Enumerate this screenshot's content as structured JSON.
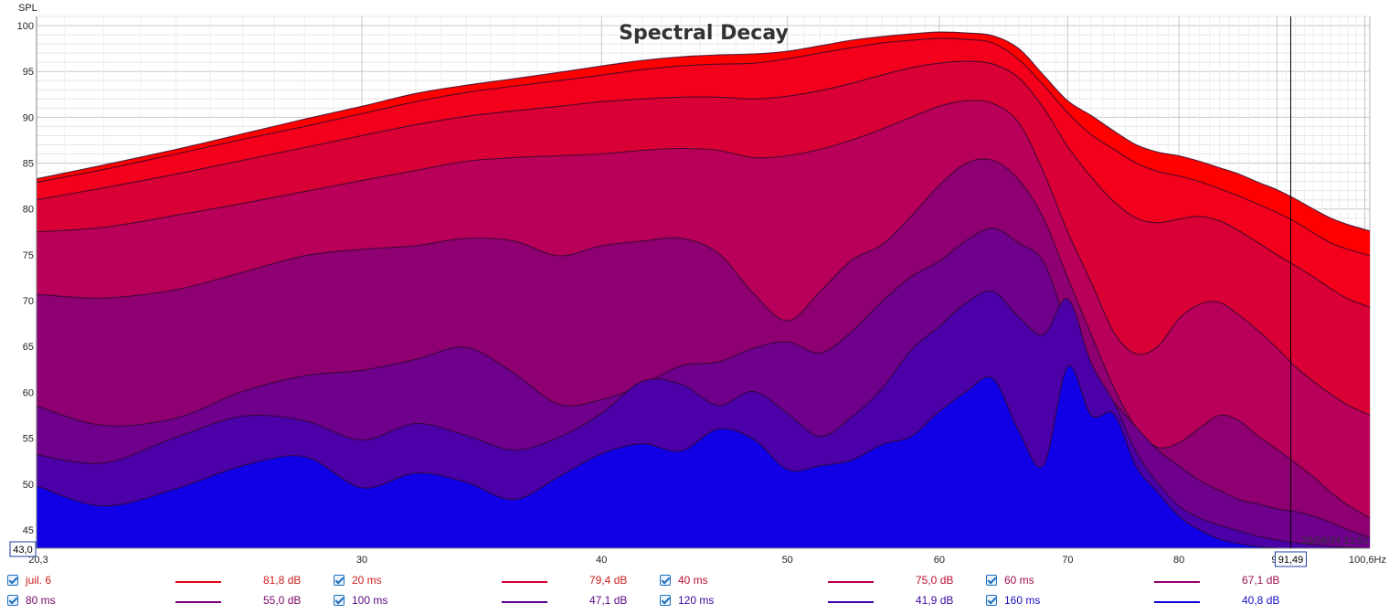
{
  "chart_data": {
    "type": "area",
    "title": "Spectral Decay",
    "ylabel": "SPL",
    "xunit": "Hz",
    "xscale": "log",
    "xlim": [
      20.3,
      100.6
    ],
    "ylim": [
      43.0,
      101.0
    ],
    "x_tick_labels": [
      "20,3",
      "30",
      "40",
      "50",
      "60",
      "70",
      "80",
      "90",
      "100,6Hz"
    ],
    "x_tick_values": [
      20.3,
      30,
      40,
      50,
      60,
      70,
      80,
      90,
      100.6
    ],
    "y_ticks": [
      45,
      50,
      55,
      60,
      65,
      70,
      75,
      80,
      85,
      90,
      95,
      100
    ],
    "y_min_label": "43,0",
    "cursor_label": "91,49",
    "cursor_x": 91.49,
    "timestamp": "25/08/24 21:51",
    "grid": true,
    "x": [
      20.3,
      22,
      24,
      26,
      28,
      30,
      32,
      34,
      36,
      38,
      40,
      42,
      44,
      46,
      48,
      50,
      52,
      54,
      56,
      58,
      60,
      62,
      64,
      66,
      68,
      70,
      72,
      74,
      76,
      78,
      80,
      82,
      84,
      86,
      88,
      90,
      92,
      94,
      96,
      98,
      100.6
    ],
    "series": [
      {
        "name": "juil. 6",
        "legend_value": "81,8 dB",
        "color": "#ff0000",
        "values": [
          83.3,
          84.8,
          86.5,
          88.2,
          89.8,
          91.2,
          92.6,
          93.5,
          94.2,
          94.9,
          95.6,
          96.2,
          96.6,
          96.8,
          96.9,
          97.2,
          97.8,
          98.4,
          98.8,
          99.1,
          99.3,
          99.2,
          98.9,
          97.5,
          94.6,
          91.8,
          90.2,
          88.5,
          87.0,
          86.2,
          85.8,
          85.2,
          84.5,
          83.8,
          82.9,
          82.1,
          81.1,
          80.0,
          79.0,
          78.3,
          77.6
        ]
      },
      {
        "name": "20 ms",
        "legend_value": "79,4 dB",
        "color": "#f2001c",
        "values": [
          82.9,
          84.3,
          86.0,
          87.6,
          89.0,
          90.4,
          91.7,
          92.7,
          93.4,
          94.0,
          94.6,
          95.2,
          95.6,
          95.8,
          95.9,
          96.4,
          97.0,
          97.6,
          98.1,
          98.4,
          98.6,
          98.5,
          98.1,
          96.3,
          93.5,
          90.5,
          88.1,
          86.5,
          85.0,
          84.1,
          83.6,
          83.0,
          82.2,
          81.4,
          80.5,
          79.6,
          78.6,
          77.4,
          76.3,
          75.6,
          74.9
        ]
      },
      {
        "name": "40 ms",
        "legend_value": "75,0 dB",
        "color": "#d80034",
        "values": [
          81.0,
          82.3,
          83.8,
          85.3,
          86.7,
          88.0,
          89.2,
          90.1,
          90.7,
          91.2,
          91.7,
          92.0,
          92.2,
          92.2,
          92.0,
          92.3,
          92.9,
          93.7,
          94.6,
          95.4,
          95.9,
          96.1,
          95.8,
          94.3,
          91.0,
          86.8,
          83.5,
          80.8,
          79.0,
          78.5,
          78.9,
          79.2,
          78.7,
          77.6,
          76.3,
          75.0,
          73.8,
          72.6,
          71.3,
          70.2,
          69.3
        ]
      },
      {
        "name": "60 ms",
        "legend_value": "67,1 dB",
        "color": "#b8005a",
        "values": [
          77.5,
          78.0,
          79.3,
          80.6,
          81.9,
          83.1,
          84.2,
          85.2,
          85.6,
          85.8,
          86.0,
          86.4,
          86.6,
          86.4,
          85.6,
          85.8,
          86.5,
          87.5,
          88.7,
          90.0,
          91.2,
          91.8,
          91.5,
          89.4,
          84.0,
          77.5,
          72.0,
          66.5,
          64.2,
          65.0,
          68.0,
          69.6,
          69.8,
          68.4,
          66.7,
          64.8,
          62.8,
          61.2,
          59.8,
          58.6,
          57.5
        ]
      },
      {
        "name": "80 ms",
        "legend_value": "55,0 dB",
        "color": "#8e0072",
        "values": [
          70.7,
          70.3,
          71.2,
          73.1,
          74.9,
          75.6,
          76.0,
          76.8,
          76.5,
          74.9,
          76.0,
          76.5,
          76.8,
          75.2,
          70.8,
          67.8,
          71.0,
          74.4,
          76.1,
          79.2,
          82.6,
          85.0,
          85.3,
          83.2,
          79.0,
          72.5,
          66.3,
          60.5,
          56.1,
          54.0,
          54.5,
          56.1,
          57.5,
          56.9,
          55.2,
          53.8,
          52.3,
          50.8,
          49.1,
          47.7,
          46.3
        ]
      },
      {
        "name": "100 ms",
        "legend_value": "47,1 dB",
        "color": "#6e008c",
        "values": [
          58.5,
          56.4,
          57.2,
          60.1,
          61.8,
          62.4,
          63.6,
          64.9,
          62.1,
          58.7,
          59.2,
          60.8,
          62.9,
          63.3,
          64.8,
          65.5,
          64.3,
          66.6,
          69.9,
          72.6,
          74.3,
          76.6,
          77.9,
          76.3,
          74.2,
          67.1,
          61.6,
          58.9,
          56.2,
          53.7,
          52.0,
          50.4,
          49.3,
          48.3,
          47.8,
          47.3,
          47.0,
          46.5,
          45.8,
          45.0,
          44.2
        ]
      },
      {
        "name": "120 ms",
        "legend_value": "41,9 dB",
        "color": "#4b00a8",
        "values": [
          53.2,
          52.3,
          55.1,
          57.4,
          56.9,
          54.8,
          56.6,
          55.3,
          53.7,
          55.1,
          57.7,
          61.2,
          60.9,
          58.6,
          60.1,
          57.7,
          55.2,
          57.3,
          60.4,
          64.6,
          67.2,
          69.8,
          71.0,
          68.2,
          66.3,
          70.2,
          63.2,
          58.9,
          53.5,
          50.1,
          47.6,
          46.3,
          45.5,
          44.9,
          44.3,
          43.9,
          43.6,
          43.4,
          43.2,
          43.1,
          43.0
        ]
      },
      {
        "name": "160 ms",
        "legend_value": "40,8 dB",
        "color": "#1100e6",
        "values": [
          49.8,
          47.6,
          49.5,
          52.0,
          53.0,
          49.6,
          51.2,
          50.2,
          48.3,
          50.8,
          53.3,
          54.4,
          53.6,
          56.0,
          54.9,
          51.6,
          52.0,
          52.6,
          54.3,
          55.2,
          57.9,
          60.1,
          61.5,
          55.8,
          52.1,
          62.8,
          57.5,
          57.6,
          51.9,
          49.1,
          46.5,
          45.0,
          44.0,
          43.5,
          43.2,
          43.0,
          43.0,
          43.0,
          43.0,
          43.0,
          43.0
        ]
      }
    ]
  },
  "legend": {
    "items": [
      {
        "label": "juil. 6",
        "value": "81,8 dB",
        "color": "#e8001a",
        "text_color": "#cc2020"
      },
      {
        "label": "20 ms",
        "value": "79,4 dB",
        "color": "#d8002e",
        "text_color": "#cc2020"
      },
      {
        "label": "40 ms",
        "value": "75,0 dB",
        "color": "#b8004e",
        "text_color": "#b81030"
      },
      {
        "label": "60 ms",
        "value": "67,1 dB",
        "color": "#96006c",
        "text_color": "#9a1050"
      },
      {
        "label": "80 ms",
        "value": "55,0 dB",
        "color": "#78007e",
        "text_color": "#7a0a6a"
      },
      {
        "label": "100 ms",
        "value": "47,1 dB",
        "color": "#5a0096",
        "text_color": "#5a0a86"
      },
      {
        "label": "120 ms",
        "value": "41,9 dB",
        "color": "#3c00ae",
        "text_color": "#3c0aa0"
      },
      {
        "label": "160 ms",
        "value": "40,8 dB",
        "color": "#1000d8",
        "text_color": "#1a10c0"
      }
    ]
  }
}
